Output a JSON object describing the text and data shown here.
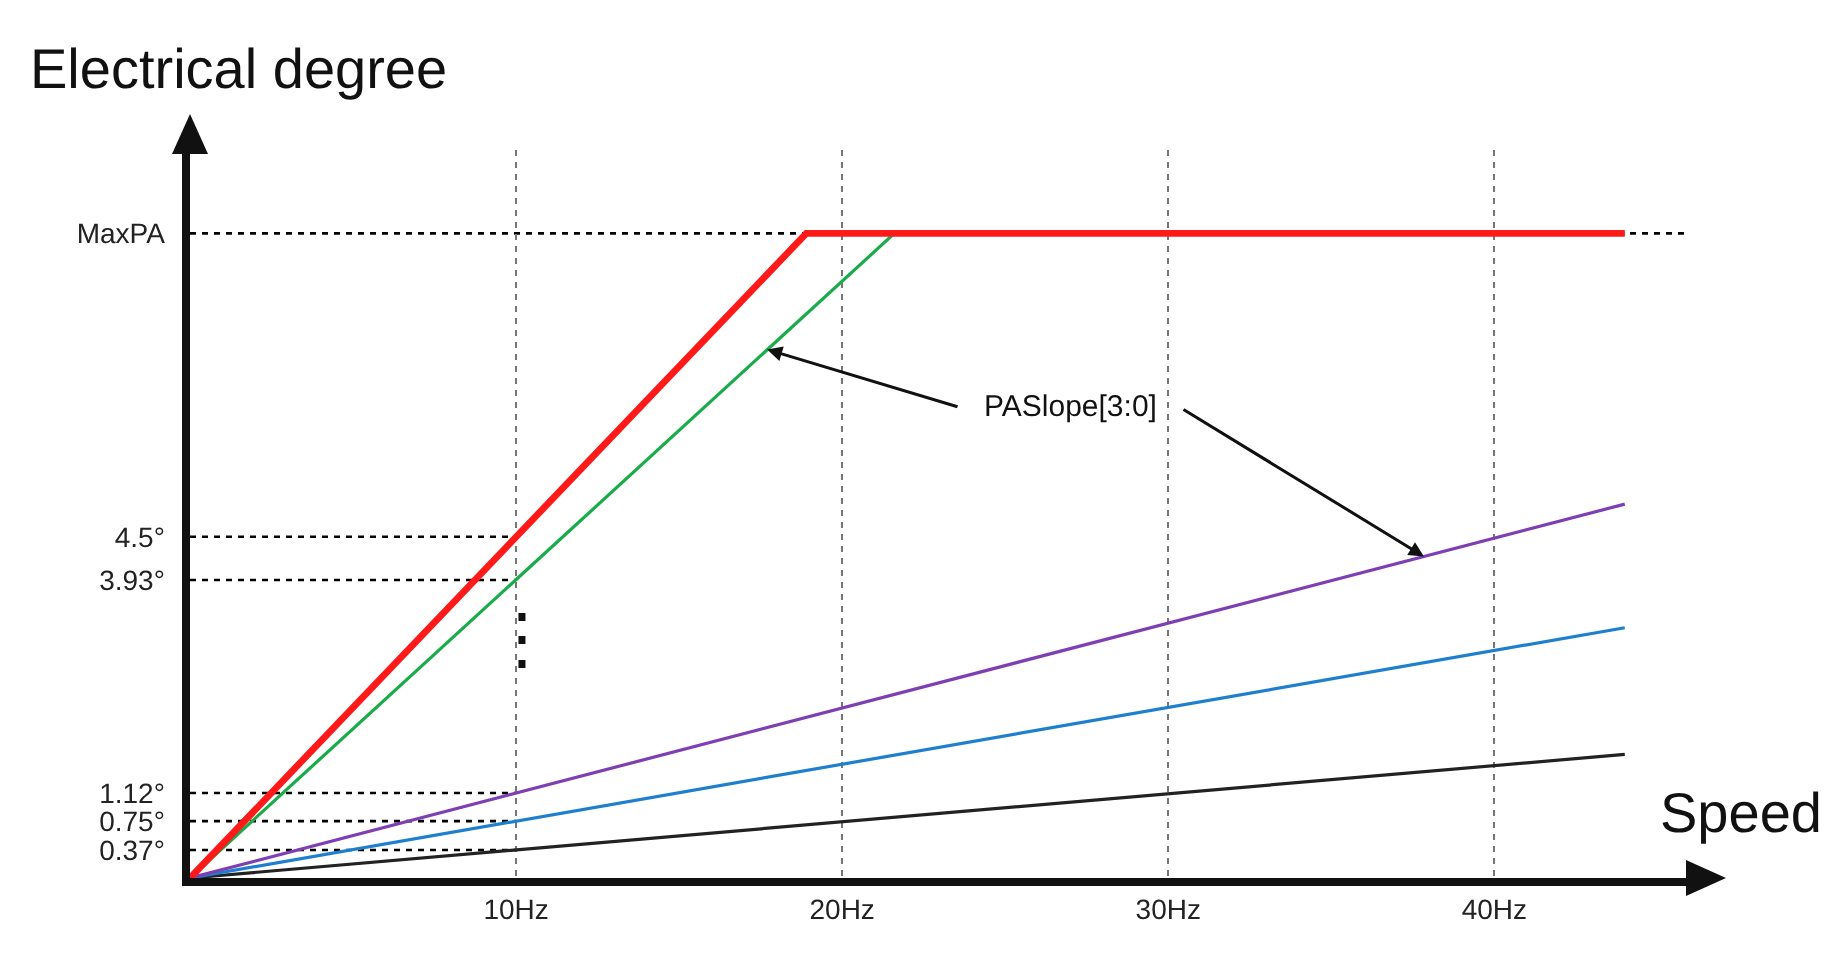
{
  "chart_data": {
    "type": "line",
    "ylabel": "Electrical degree",
    "xlabel": "Speed",
    "series": [
      {
        "color": "#ff1a1a",
        "x": [
          0,
          18.9,
          44
        ],
        "values": [
          0,
          8.5,
          8.5
        ]
      },
      {
        "color": "#1aab4b",
        "x": [
          0,
          21.6,
          44
        ],
        "values": [
          0,
          8.5,
          8.5
        ]
      },
      {
        "color": "#7d3fb3",
        "x": [
          0,
          44
        ],
        "values": [
          0,
          4.93
        ]
      },
      {
        "color": "#1f7fcf",
        "x": [
          0,
          44
        ],
        "values": [
          0,
          3.3
        ]
      },
      {
        "color": "#222222",
        "x": [
          0,
          44
        ],
        "values": [
          0,
          1.63
        ]
      }
    ],
    "xlim": [
      0,
      46
    ],
    "xticks": [
      {
        "value": 10,
        "label": "10Hz"
      },
      {
        "value": 20,
        "label": "20Hz"
      },
      {
        "value": 30,
        "label": "30Hz"
      },
      {
        "value": 40,
        "label": "40Hz"
      }
    ],
    "ylim": [
      0,
      9.6
    ],
    "yticks": [
      {
        "value": 0.37,
        "label": "0.37°"
      },
      {
        "value": 0.75,
        "label": "0.75°"
      },
      {
        "value": 1.12,
        "label": "1.12°"
      },
      {
        "value": 3.93,
        "label": "3.93°"
      },
      {
        "value": 4.5,
        "label": "4.5°"
      },
      {
        "value": 8.5,
        "label": "MaxPA"
      }
    ],
    "ref_lines": [
      {
        "axis": "y",
        "value": 0.37,
        "line_style": "dotted"
      },
      {
        "axis": "y",
        "value": 0.75,
        "line_style": "dotted"
      },
      {
        "axis": "y",
        "value": 1.12,
        "line_style": "dotted"
      },
      {
        "axis": "y",
        "value": 3.93,
        "line_style": "dotted"
      },
      {
        "axis": "y",
        "value": 4.5,
        "line_style": "dotted"
      },
      {
        "axis": "y",
        "value": 8.5,
        "line_style": "dotted"
      }
    ],
    "annotations": [
      {
        "text": "PASlope[3:0]",
        "x": 17.7,
        "y": 6.97
      },
      "⋮"
    ],
    "grid": "x",
    "marker": "none",
    "line_style": "solid"
  }
}
